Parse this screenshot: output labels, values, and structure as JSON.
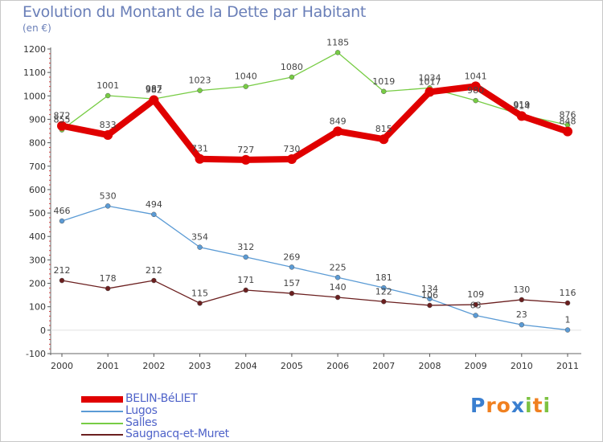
{
  "chart_data": {
    "type": "line",
    "title": "Evolution du Montant de la Dette par Habitant",
    "subtitle": "(en €)",
    "x": [
      "2000",
      "2001",
      "2002",
      "2003",
      "2004",
      "2005",
      "2006",
      "2007",
      "2008",
      "2009",
      "2010",
      "2011"
    ],
    "ylim": [
      -100,
      1200
    ],
    "yticks": [
      "-100",
      "0",
      "100",
      "200",
      "300",
      "400",
      "500",
      "600",
      "700",
      "800",
      "900",
      "1000",
      "1100",
      "1200"
    ],
    "grid": false,
    "legend_position": "bottom-left",
    "series": [
      {
        "name": "BELIN-BéLIET",
        "color": "#e00000",
        "values": [
          872,
          833,
          982,
          731,
          727,
          730,
          849,
          815,
          1017,
          1041,
          914,
          848
        ]
      },
      {
        "name": "Lugos",
        "color": "#5b9bd5",
        "values": [
          466,
          530,
          494,
          354,
          312,
          269,
          225,
          181,
          134,
          63,
          23,
          1
        ]
      },
      {
        "name": "Salles",
        "color": "#77cc44",
        "values": [
          855,
          1001,
          987,
          1023,
          1040,
          1080,
          1185,
          1019,
          1034,
          980,
          919,
          876
        ]
      },
      {
        "name": "Saugnacq-et-Muret",
        "color": "#6b1f1f",
        "values": [
          212,
          178,
          212,
          115,
          171,
          157,
          140,
          122,
          106,
          109,
          130,
          116
        ]
      }
    ]
  },
  "logo": {
    "letters": [
      "P",
      "r",
      "o",
      "x",
      "i",
      "t",
      "i"
    ],
    "colors": [
      "#3a7fd0",
      "#f08020",
      "#f08020",
      "#3a7fd0",
      "#7dc242",
      "#f08020",
      "#7dc242"
    ]
  }
}
